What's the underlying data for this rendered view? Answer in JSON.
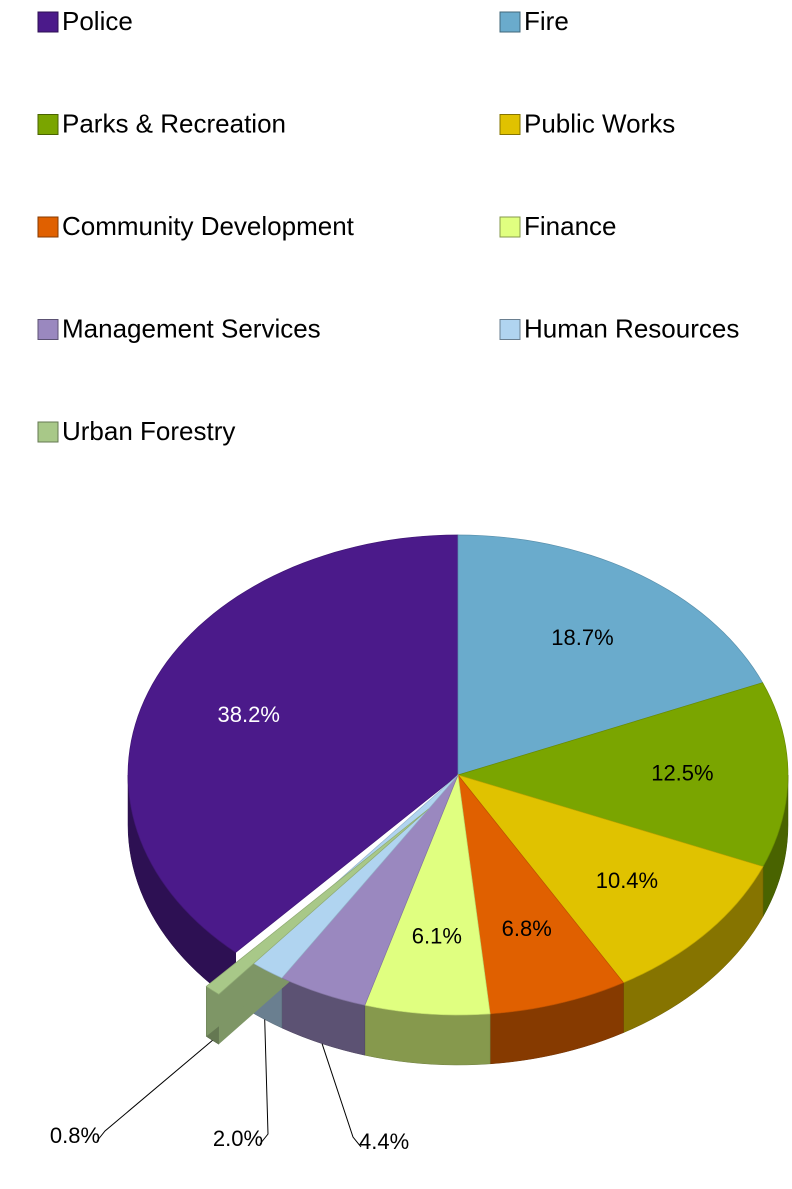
{
  "chart_data": {
    "type": "pie3d",
    "categories": [
      "Police",
      "Fire",
      "Parks & Recreation",
      "Public Works",
      "Community Development",
      "Finance",
      "Management Services",
      "Human Resources",
      "Urban Forestry"
    ],
    "values": [
      38.2,
      18.7,
      12.5,
      10.4,
      6.8,
      6.1,
      4.4,
      2.0,
      0.8
    ],
    "value_labels": [
      "38.2%",
      "18.7%",
      "12.5%",
      "10.4%",
      "6.8%",
      "6.1%",
      "4.4%",
      "2.0%",
      "0.8%"
    ],
    "colors": [
      "#4b1a8a",
      "#6aabcc",
      "#7aa500",
      "#e0c200",
      "#e06000",
      "#e0ff80",
      "#9a88bf",
      "#b0d4f0",
      "#a8c888"
    ],
    "legend": "top"
  }
}
